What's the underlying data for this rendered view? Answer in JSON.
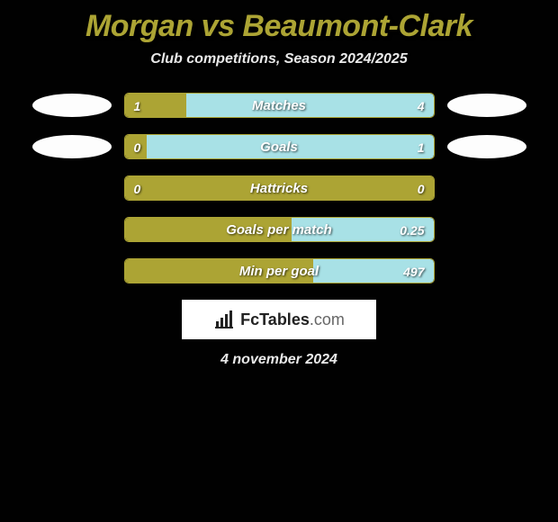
{
  "title": "Morgan vs Beaumont-Clark",
  "subtitle": "Club competitions, Season 2024/2025",
  "date": "4 november 2024",
  "colors": {
    "background": "#010101",
    "accent": "#aca434",
    "p2_bar": "#a8e1e6",
    "text": "#e9e9e9",
    "white": "#fdfdfd"
  },
  "logo": {
    "brand": "FcTables",
    "domain": ".com"
  },
  "stats": [
    {
      "label": "Matches",
      "left_val": "1",
      "right_val": "4",
      "left_pct": 20,
      "right_pct": 80,
      "show_left_avatar": true,
      "show_right_avatar": true
    },
    {
      "label": "Goals",
      "left_val": "0",
      "right_val": "1",
      "left_pct": 7,
      "right_pct": 93,
      "show_left_avatar": true,
      "show_right_avatar": true
    },
    {
      "label": "Hattricks",
      "left_val": "0",
      "right_val": "0",
      "left_pct": 100,
      "right_pct": 0,
      "show_left_avatar": false,
      "show_right_avatar": false
    },
    {
      "label": "Goals per match",
      "left_val": "",
      "right_val": "0.25",
      "left_pct": 54,
      "right_pct": 46,
      "show_left_avatar": false,
      "show_right_avatar": false
    },
    {
      "label": "Min per goal",
      "left_val": "",
      "right_val": "497",
      "left_pct": 61,
      "right_pct": 39,
      "show_left_avatar": false,
      "show_right_avatar": false
    }
  ]
}
